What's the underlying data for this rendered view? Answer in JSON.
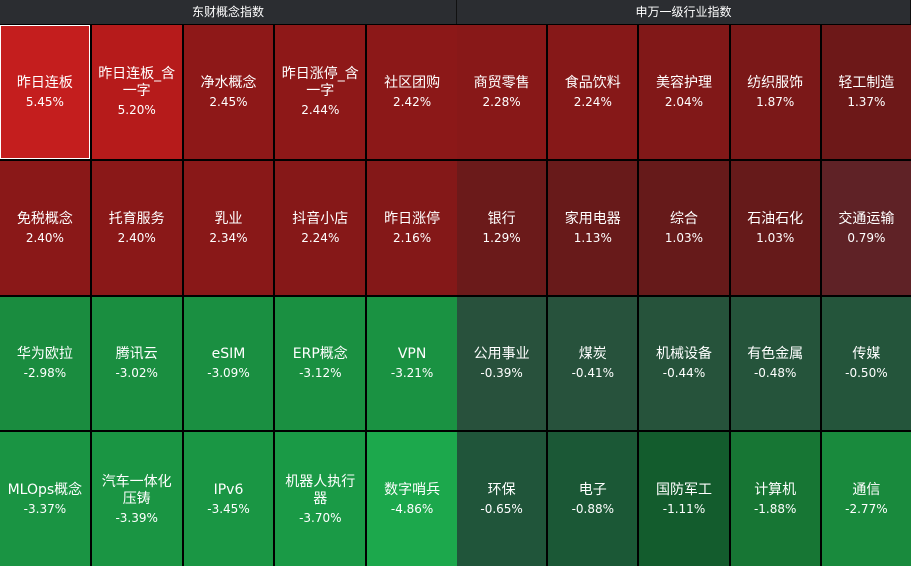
{
  "left": {
    "title": "东财概念指数",
    "cells": [
      {
        "name": "昨日连板",
        "pct": "5.45%",
        "color": "#c41e1e",
        "selected": true
      },
      {
        "name": "昨日连板_含一字",
        "pct": "5.20%",
        "color": "#b61b1b"
      },
      {
        "name": "净水概念",
        "pct": "2.45%",
        "color": "#8e1818"
      },
      {
        "name": "昨日涨停_含一字",
        "pct": "2.44%",
        "color": "#8e1818"
      },
      {
        "name": "社区团购",
        "pct": "2.42%",
        "color": "#8c1818"
      },
      {
        "name": "免税概念",
        "pct": "2.40%",
        "color": "#8a1818"
      },
      {
        "name": "托育服务",
        "pct": "2.40%",
        "color": "#8a1818"
      },
      {
        "name": "乳业",
        "pct": "2.34%",
        "color": "#891818"
      },
      {
        "name": "抖音小店",
        "pct": "2.24%",
        "color": "#861818"
      },
      {
        "name": "昨日涨停",
        "pct": "2.16%",
        "color": "#841818"
      },
      {
        "name": "华为欧拉",
        "pct": "-2.98%",
        "color": "#1a8c3f"
      },
      {
        "name": "腾讯云",
        "pct": "-3.02%",
        "color": "#1a8e40"
      },
      {
        "name": "eSIM",
        "pct": "-3.09%",
        "color": "#1a8f41"
      },
      {
        "name": "ERP概念",
        "pct": "-3.12%",
        "color": "#1a9041"
      },
      {
        "name": "VPN",
        "pct": "-3.21%",
        "color": "#1a9242"
      },
      {
        "name": "MLOps概念",
        "pct": "-3.37%",
        "color": "#1a9443"
      },
      {
        "name": "汽车一体化压铸",
        "pct": "-3.39%",
        "color": "#1a9543"
      },
      {
        "name": "IPv6",
        "pct": "-3.45%",
        "color": "#1a9644"
      },
      {
        "name": "机器人执行器",
        "pct": "-3.70%",
        "color": "#1a9a46"
      },
      {
        "name": "数字哨兵",
        "pct": "-4.86%",
        "color": "#1ca84c"
      }
    ]
  },
  "right": {
    "title": "申万一级行业指数",
    "cells": [
      {
        "name": "商贸零售",
        "pct": "2.28%",
        "color": "#881818"
      },
      {
        "name": "食品饮料",
        "pct": "2.24%",
        "color": "#861818"
      },
      {
        "name": "美容护理",
        "pct": "2.04%",
        "color": "#811818"
      },
      {
        "name": "纺织服饰",
        "pct": "1.87%",
        "color": "#7b1818"
      },
      {
        "name": "轻工制造",
        "pct": "1.37%",
        "color": "#6d1818"
      },
      {
        "name": "银行",
        "pct": "1.29%",
        "color": "#6b1a1a"
      },
      {
        "name": "家用电器",
        "pct": "1.13%",
        "color": "#681a1a"
      },
      {
        "name": "综合",
        "pct": "1.03%",
        "color": "#661a1a"
      },
      {
        "name": "石油石化",
        "pct": "1.03%",
        "color": "#661a1a"
      },
      {
        "name": "交通运输",
        "pct": "0.79%",
        "color": "#5f2226"
      },
      {
        "name": "公用事业",
        "pct": "-0.39%",
        "color": "#28513c"
      },
      {
        "name": "煤炭",
        "pct": "-0.41%",
        "color": "#27523c"
      },
      {
        "name": "机械设备",
        "pct": "-0.44%",
        "color": "#26533b"
      },
      {
        "name": "有色金属",
        "pct": "-0.48%",
        "color": "#25543b"
      },
      {
        "name": "传媒",
        "pct": "-0.50%",
        "color": "#24553b"
      },
      {
        "name": "环保",
        "pct": "-0.65%",
        "color": "#20553a"
      },
      {
        "name": "电子",
        "pct": "-0.88%",
        "color": "#1b5836"
      },
      {
        "name": "国防军工",
        "pct": "-1.11%",
        "color": "#135c2d"
      },
      {
        "name": "计算机",
        "pct": "-1.88%",
        "color": "#177634"
      },
      {
        "name": "通信",
        "pct": "-2.77%",
        "color": "#198a3d"
      }
    ]
  }
}
